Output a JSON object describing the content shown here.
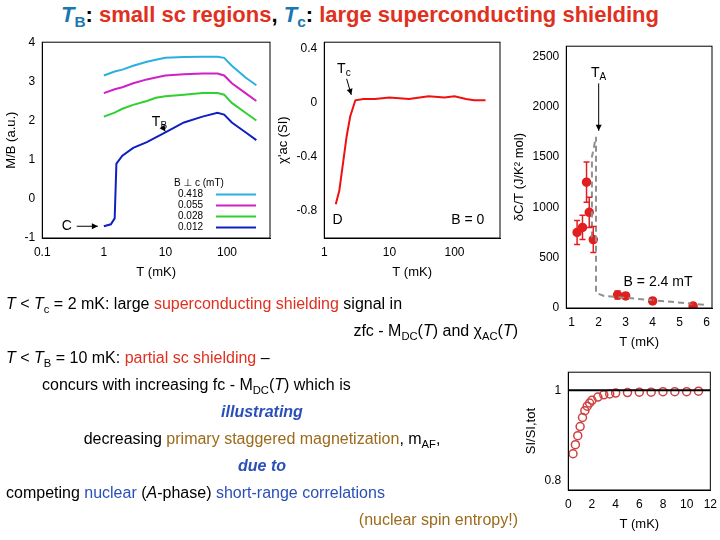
{
  "title": {
    "runs": [
      {
        "t": "T",
        "c": "#1a78b0",
        "i": true
      },
      {
        "t": "B",
        "c": "#1a78b0",
        "s": true
      },
      {
        "t": ": "
      },
      {
        "t": "small sc regions",
        "c": "#e03020"
      },
      {
        "t": ", "
      },
      {
        "t": "T",
        "c": "#1a78b0",
        "i": true
      },
      {
        "t": "c",
        "c": "#1a78b0",
        "s": true
      },
      {
        "t": ": "
      },
      {
        "t": "large superconducting shielding",
        "c": "#e03020"
      }
    ]
  },
  "text": [
    {
      "align": "left",
      "runs": [
        {
          "t": "T",
          "i": true
        },
        {
          "t": " < "
        },
        {
          "t": "T",
          "i": true
        },
        {
          "t": "c",
          "s": true
        },
        {
          "t": " = 2 mK:  large "
        },
        {
          "t": "superconducting shielding",
          "c": "#e03020"
        },
        {
          "t": " signal in"
        }
      ]
    },
    {
      "align": "right",
      "runs": [
        {
          "t": "zfc - M"
        },
        {
          "t": "DC",
          "s": true
        },
        {
          "t": "("
        },
        {
          "t": "T",
          "i": true
        },
        {
          "t": ") and χ"
        },
        {
          "t": "AC",
          "s": true
        },
        {
          "t": "("
        },
        {
          "t": "T",
          "i": true
        },
        {
          "t": ")"
        }
      ]
    },
    {
      "align": "left",
      "runs": [
        {
          "t": "T",
          "i": true
        },
        {
          "t": " < "
        },
        {
          "t": "T",
          "i": true
        },
        {
          "t": "B",
          "s": true
        },
        {
          "t": " = 10 mK:  "
        },
        {
          "t": "partial sc shielding",
          "c": "#e03020"
        },
        {
          "t": " –"
        }
      ]
    },
    {
      "align": "indent",
      "runs": [
        {
          "t": "concurs with increasing fc - M"
        },
        {
          "t": "DC",
          "s": true
        },
        {
          "t": "("
        },
        {
          "t": "T",
          "i": true
        },
        {
          "t": ") which is"
        }
      ]
    },
    {
      "align": "center",
      "runs": [
        {
          "t": "illustrating",
          "c": "#2a4fb8",
          "i": true,
          "b": true
        }
      ]
    },
    {
      "align": "center",
      "runs": [
        {
          "t": "decreasing "
        },
        {
          "t": "primary staggered magnetization",
          "c": "#9c6a1a"
        },
        {
          "t": ", m"
        },
        {
          "t": "AF",
          "s": true
        },
        {
          "t": ","
        }
      ]
    },
    {
      "align": "center",
      "runs": [
        {
          "t": "due to",
          "c": "#2a4fb8",
          "i": true,
          "b": true
        }
      ]
    },
    {
      "align": "left",
      "runs": [
        {
          "t": "competing "
        },
        {
          "t": "nuclear",
          "c": "#2a4fb8"
        },
        {
          "t": " ("
        },
        {
          "t": "A",
          "i": true
        },
        {
          "t": "-phase) "
        },
        {
          "t": "short-range correlations",
          "c": "#2a4fb8"
        }
      ]
    },
    {
      "align": "right",
      "runs": [
        {
          "t": "(nuclear spin entropy!)",
          "c": "#9c6a1a"
        }
      ]
    }
  ],
  "chart_data": [
    {
      "type": "line",
      "x_label": "T (mK)",
      "y_label": "M/B (a.u.)",
      "log": "x",
      "grid": false,
      "xlim": [
        0.1,
        500
      ],
      "xticks": [
        0.1,
        1,
        10,
        100
      ],
      "ylim": [
        -1,
        4
      ],
      "yticks": [
        -1,
        0,
        1,
        2,
        3,
        4
      ],
      "legend": "lower right",
      "legend_title": "B ⊥ c (mT)",
      "series": [
        {
          "name": "0.418",
          "color": "#2ab0e0",
          "x": [
            1,
            1.5,
            2,
            3,
            5,
            7,
            10,
            20,
            40,
            70,
            90,
            120,
            200,
            300
          ],
          "values": [
            3.15,
            3.25,
            3.3,
            3.4,
            3.5,
            3.55,
            3.6,
            3.62,
            3.63,
            3.63,
            3.6,
            3.4,
            3.1,
            2.9
          ]
        },
        {
          "name": "0.055",
          "color": "#d020c8",
          "x": [
            1,
            1.5,
            2,
            3,
            5,
            7,
            10,
            20,
            40,
            70,
            90,
            120,
            200,
            300
          ],
          "values": [
            2.7,
            2.8,
            2.85,
            2.95,
            3.05,
            3.1,
            3.15,
            3.18,
            3.2,
            3.2,
            3.15,
            2.95,
            2.7,
            2.5
          ]
        },
        {
          "name": "0.028",
          "color": "#30d030",
          "x": [
            1,
            1.5,
            2,
            3,
            5,
            7,
            10,
            20,
            40,
            70,
            90,
            120,
            200,
            300
          ],
          "values": [
            2.1,
            2.2,
            2.3,
            2.4,
            2.5,
            2.58,
            2.62,
            2.66,
            2.7,
            2.7,
            2.66,
            2.45,
            2.2,
            2.0
          ]
        },
        {
          "name": "0.012",
          "color": "#1020c0",
          "x": [
            1,
            1.3,
            1.5,
            1.6,
            2,
            3,
            5,
            10,
            20,
            40,
            70,
            90,
            120,
            200,
            300
          ],
          "values": [
            -0.7,
            -0.65,
            -0.5,
            0.9,
            1.1,
            1.3,
            1.45,
            1.7,
            1.95,
            2.1,
            2.2,
            2.15,
            1.95,
            1.7,
            1.5
          ]
        }
      ],
      "annotations": [
        {
          "runs": [
            {
              "t": "T"
            },
            {
              "t": "B",
              "s": true
            }
          ],
          "x": 8,
          "y": 1.95,
          "arrow_to": [
            10,
            1.72
          ]
        },
        {
          "runs": [
            {
              "t": "C"
            }
          ],
          "x": 0.25,
          "y": -0.7,
          "arrow_to": [
            0.8,
            -0.7
          ]
        }
      ]
    },
    {
      "type": "line",
      "x_label": "T (mK)",
      "y_label": "χ'ac (SI)",
      "log": "x",
      "grid": false,
      "xlim": [
        1,
        500
      ],
      "xticks": [
        1,
        10,
        100
      ],
      "ylim": [
        -1,
        0.45
      ],
      "yticks": [
        -0.8,
        -0.4,
        0,
        0.4
      ],
      "series": [
        {
          "color": "#f01010",
          "x": [
            1.5,
            1.7,
            2,
            2.2,
            2.5,
            3,
            4,
            6,
            10,
            20,
            40,
            70,
            100,
            150,
            200,
            300
          ],
          "values": [
            -0.75,
            -0.65,
            -0.4,
            -0.25,
            -0.1,
            0.02,
            0.03,
            0.03,
            0.04,
            0.03,
            0.05,
            0.04,
            0.05,
            0.03,
            0.02,
            0.02
          ]
        }
      ],
      "annotations": [
        {
          "runs": [
            {
              "t": "T"
            },
            {
              "t": "c",
              "s": true
            }
          ],
          "x": 2,
          "y": 0.25,
          "arrow_to": [
            2.6,
            0.06
          ]
        },
        {
          "runs": [
            {
              "t": "D"
            }
          ],
          "x": 1.6,
          "y": -0.87
        },
        {
          "runs": [
            {
              "t": "B = 0"
            }
          ],
          "x": 160,
          "y": -0.87
        }
      ]
    },
    {
      "type": "scatter",
      "x_label": "T (mK)",
      "y_label": "δC/T (J/K² mol)",
      "grid": false,
      "xlim": [
        0.8,
        6.2
      ],
      "xticks": [
        1,
        2,
        3,
        4,
        5,
        6
      ],
      "ylim": [
        0,
        2600
      ],
      "yticks": [
        0,
        500,
        1000,
        1500,
        2000,
        2500
      ],
      "series": [
        {
          "type": "line",
          "line_style": "dashed",
          "color": "#909090",
          "x": [
            1.75,
            1.75,
            1.9,
            1.9,
            2.2,
            6
          ],
          "values": [
            700,
            1500,
            1700,
            150,
            120,
            30
          ]
        },
        {
          "type": "scatter",
          "marker": "circle",
          "color": "#e02020",
          "x": [
            1.2,
            1.4,
            1.55,
            1.65,
            1.8,
            2.7,
            3.0,
            4.0,
            5.5
          ],
          "values": [
            750,
            800,
            1250,
            950,
            680,
            130,
            120,
            70,
            20
          ],
          "errors": [
            120,
            120,
            200,
            150,
            130,
            40,
            30,
            30,
            30
          ]
        }
      ],
      "annotations": [
        {
          "runs": [
            {
              "t": "T"
            },
            {
              "t": "A",
              "s": true
            }
          ],
          "x": 2.0,
          "y": 2330,
          "arrow_to": [
            2.0,
            1760
          ]
        },
        {
          "runs": [
            {
              "t": "B = 2.4 mT"
            }
          ],
          "x": 4.2,
          "y": 260
        }
      ]
    },
    {
      "type": "scatter",
      "x_label": "T (mK)",
      "y_label": "SI/SI,tot",
      "grid": false,
      "xlim": [
        0,
        12
      ],
      "xticks": [
        0,
        2,
        4,
        6,
        8,
        10,
        12
      ],
      "ylim": [
        0.78,
        1.04
      ],
      "yticks": [
        0.8,
        1
      ],
      "series": [
        {
          "type": "line",
          "color": "#000000",
          "x": [
            0,
            12
          ],
          "values": [
            1,
            1
          ]
        },
        {
          "type": "scatter",
          "marker": "hollow",
          "color": "#d04040",
          "x": [
            0.4,
            0.6,
            0.8,
            1.0,
            1.2,
            1.4,
            1.6,
            1.8,
            2,
            2.5,
            3,
            3.5,
            4,
            5,
            6,
            7,
            8,
            9,
            10,
            11
          ],
          "values": [
            0.86,
            0.88,
            0.9,
            0.92,
            0.94,
            0.955,
            0.965,
            0.972,
            0.978,
            0.985,
            0.99,
            0.992,
            0.994,
            0.995,
            0.996,
            0.996,
            0.997,
            0.997,
            0.997,
            0.998
          ]
        }
      ]
    }
  ]
}
